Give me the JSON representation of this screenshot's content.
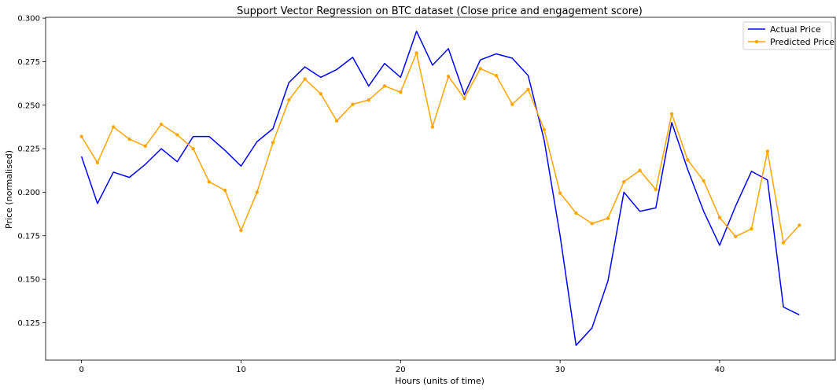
{
  "chart_data": {
    "type": "line",
    "title": "Support Vector Regression on BTC dataset (Close price and engagement score)",
    "xlabel": "Hours (units of time)",
    "ylabel": "Price (normalised)",
    "xlim": [
      -2.25,
      47.25
    ],
    "ylim": [
      0.1035,
      0.3005
    ],
    "xticks": [
      0,
      10,
      20,
      30,
      40
    ],
    "xtick_labels": [
      "0",
      "10",
      "20",
      "30",
      "40"
    ],
    "yticks": [
      0.125,
      0.15,
      0.175,
      0.2,
      0.225,
      0.25,
      0.275,
      0.3
    ],
    "ytick_labels": [
      "0.125",
      "0.150",
      "0.175",
      "0.200",
      "0.225",
      "0.250",
      "0.275",
      "0.300"
    ],
    "grid": false,
    "legend_position": "top-right",
    "series": [
      {
        "name": "Actual Price",
        "color": "#0000ff",
        "marker": "none",
        "x": [
          0,
          1,
          2,
          3,
          4,
          5,
          6,
          7,
          8,
          9,
          10,
          11,
          12,
          13,
          14,
          15,
          16,
          17,
          18,
          19,
          20,
          21,
          22,
          23,
          24,
          25,
          26,
          27,
          28,
          29,
          30,
          31,
          32,
          33,
          34,
          35,
          36,
          37,
          38,
          39,
          40,
          41,
          42,
          43,
          44,
          45
        ],
        "values": [
          0.2205,
          0.1935,
          0.2115,
          0.2085,
          0.216,
          0.225,
          0.2175,
          0.232,
          0.232,
          0.224,
          0.215,
          0.229,
          0.2365,
          0.263,
          0.272,
          0.266,
          0.2705,
          0.2775,
          0.261,
          0.274,
          0.266,
          0.2925,
          0.273,
          0.2825,
          0.256,
          0.276,
          0.2795,
          0.277,
          0.267,
          0.23,
          0.175,
          0.112,
          0.122,
          0.149,
          0.2,
          0.189,
          0.191,
          0.24,
          0.213,
          0.189,
          0.1695,
          0.192,
          0.212,
          0.207,
          0.134,
          0.1295
        ]
      },
      {
        "name": "Predicted Price",
        "color": "#ffa500",
        "marker": "dot",
        "x": [
          0,
          1,
          2,
          3,
          4,
          5,
          6,
          7,
          8,
          9,
          10,
          11,
          12,
          13,
          14,
          15,
          16,
          17,
          18,
          19,
          20,
          21,
          22,
          23,
          24,
          25,
          26,
          27,
          28,
          29,
          30,
          31,
          32,
          33,
          34,
          35,
          36,
          37,
          38,
          39,
          40,
          41,
          42,
          43,
          44,
          45
        ],
        "values": [
          0.232,
          0.217,
          0.2375,
          0.2305,
          0.2265,
          0.239,
          0.233,
          0.225,
          0.206,
          0.201,
          0.178,
          0.2,
          0.2285,
          0.253,
          0.265,
          0.2565,
          0.241,
          0.2505,
          0.253,
          0.261,
          0.2575,
          0.28,
          0.2375,
          0.2665,
          0.254,
          0.271,
          0.267,
          0.2505,
          0.259,
          0.236,
          0.1995,
          0.188,
          0.182,
          0.185,
          0.206,
          0.2125,
          0.2015,
          0.245,
          0.2185,
          0.2065,
          0.1855,
          0.1745,
          0.179,
          0.2235,
          0.171,
          0.181
        ]
      }
    ]
  }
}
